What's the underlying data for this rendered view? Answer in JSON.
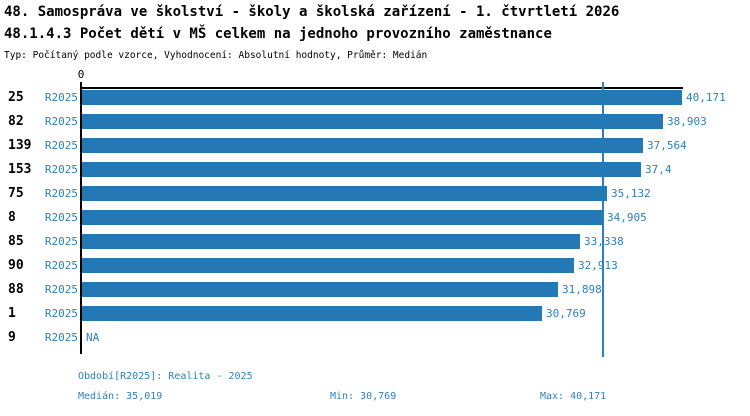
{
  "header": {
    "title_line1": "48. Samospráva ve školství - školy a školská zařízení - 1. čtvrtletí 2026",
    "title_line2": "48.1.4.3 Počet dětí v MŠ celkem na jednoho provozního zaměstnance",
    "subtitle": "Typ: Počítaný podle vzorce, Vyhodnocení: Absolutní hodnoty, Průměr: Medián"
  },
  "chart": {
    "axis_zero_label": "0",
    "rows": [
      {
        "code": "25",
        "period": "R2025",
        "value_label": "40,171",
        "value": 40.171
      },
      {
        "code": "82",
        "period": "R2025",
        "value_label": "38,903",
        "value": 38.903
      },
      {
        "code": "139",
        "period": "R2025",
        "value_label": "37,564",
        "value": 37.564
      },
      {
        "code": "153",
        "period": "R2025",
        "value_label": "37,4",
        "value": 37.4
      },
      {
        "code": "75",
        "period": "R2025",
        "value_label": "35,132",
        "value": 35.132
      },
      {
        "code": "8",
        "period": "R2025",
        "value_label": "34,905",
        "value": 34.905
      },
      {
        "code": "85",
        "period": "R2025",
        "value_label": "33,338",
        "value": 33.338
      },
      {
        "code": "90",
        "period": "R2025",
        "value_label": "32,913",
        "value": 32.913
      },
      {
        "code": "88",
        "period": "R2025",
        "value_label": "31,898",
        "value": 31.898
      },
      {
        "code": "1",
        "period": "R2025",
        "value_label": "30,769",
        "value": 30.769
      },
      {
        "code": "9",
        "period": "R2025",
        "value_label": "NA",
        "value": null
      }
    ]
  },
  "footer": {
    "period_line": "Období[R2025]: Realita - 2025",
    "median": "Medián: 35,019",
    "min": "Min: 30,769",
    "max": "Max: 40,171"
  },
  "colors": {
    "bar": "#2478b4",
    "accent_text": "#2e80bc",
    "median_line": "#2e80bc"
  },
  "chart_data": {
    "type": "bar",
    "orientation": "horizontal",
    "title": "48.1.4.3 Počet dětí v MŠ celkem na jednoho provozního zaměstnance",
    "subtitle": "Typ: Počítaný podle vzorce, Vyhodnocení: Absolutní hodnoty, Průměr: Medián",
    "categories": [
      "25",
      "82",
      "139",
      "153",
      "75",
      "8",
      "85",
      "90",
      "88",
      "1",
      "9"
    ],
    "series": [
      {
        "name": "R2025",
        "values": [
          40.171,
          38.903,
          37.564,
          37.4,
          35.132,
          34.905,
          33.338,
          32.913,
          31.898,
          30.769,
          null
        ]
      }
    ],
    "value_labels": [
      "40,171",
      "38,903",
      "37,564",
      "37,4",
      "35,132",
      "34,905",
      "33,338",
      "32,913",
      "31,898",
      "30,769",
      "NA"
    ],
    "decimal_separator": ",",
    "xlim": [
      0,
      40.171
    ],
    "x_ticks": [
      "0"
    ],
    "grid": false,
    "legend_position": "none",
    "median_line_value": 35.019,
    "stats": {
      "median": 35.019,
      "min": 30.769,
      "max": 40.171
    }
  }
}
